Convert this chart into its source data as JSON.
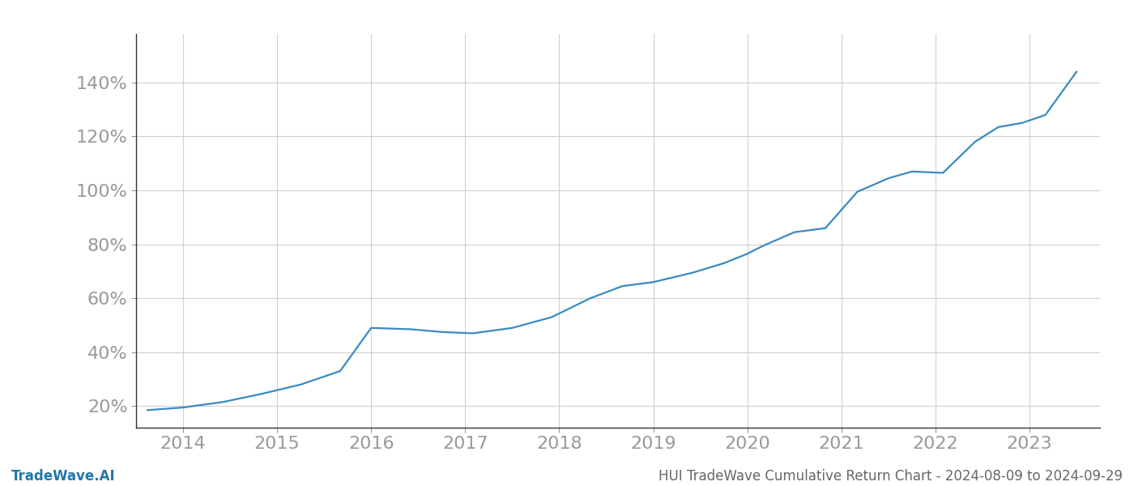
{
  "title": "HUI TradeWave Cumulative Return Chart - 2024-08-09 to 2024-09-29",
  "watermark": "TradeWave.AI",
  "line_color": "#3a8bbf",
  "background_color": "#ffffff",
  "grid_color": "#d0d0d0",
  "x_years": [
    2013.62,
    2014.0,
    2014.42,
    2014.83,
    2015.25,
    2015.67,
    2016.0,
    2016.42,
    2016.75,
    2017.08,
    2017.5,
    2017.92,
    2018.33,
    2018.67,
    2019.0,
    2019.42,
    2019.75,
    2020.0,
    2020.17,
    2020.5,
    2020.83,
    2021.17,
    2021.5,
    2021.75,
    2022.08,
    2022.42,
    2022.67,
    2022.92,
    2023.17,
    2023.5
  ],
  "y_values": [
    18.5,
    19.5,
    21.5,
    24.5,
    28.0,
    33.0,
    49.0,
    48.5,
    47.5,
    47.0,
    49.0,
    53.0,
    60.0,
    64.5,
    66.0,
    69.5,
    73.0,
    76.5,
    79.5,
    84.5,
    86.0,
    99.5,
    104.5,
    107.0,
    106.5,
    118.0,
    123.5,
    125.0,
    128.0,
    144.0
  ],
  "yticks": [
    20,
    40,
    60,
    80,
    100,
    120,
    140
  ],
  "xticks": [
    2014,
    2015,
    2016,
    2017,
    2018,
    2019,
    2020,
    2021,
    2022,
    2023
  ],
  "ylim": [
    12,
    158
  ],
  "xlim": [
    2013.5,
    2023.75
  ],
  "line_width": 1.6,
  "tick_fontsize": 16,
  "bottom_fontsize": 12,
  "text_color": "#999999",
  "spine_color": "#333333",
  "title_color": "#666666",
  "watermark_color": "#2277aa"
}
